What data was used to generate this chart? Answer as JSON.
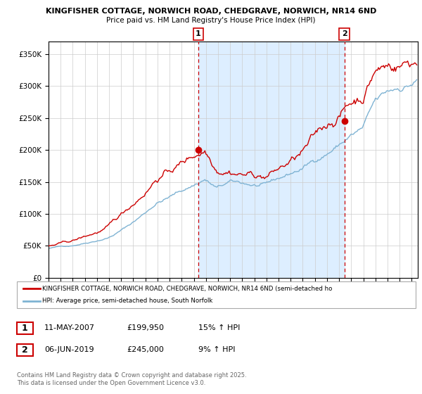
{
  "title_line1": "KINGFISHER COTTAGE, NORWICH ROAD, CHEDGRAVE, NORWICH, NR14 6ND",
  "title_line2": "Price paid vs. HM Land Registry's House Price Index (HPI)",
  "legend_line1": "KINGFISHER COTTAGE, NORWICH ROAD, CHEDGRAVE, NORWICH, NR14 6ND (semi-detached ho",
  "legend_line2": "HPI: Average price, semi-detached house, South Norfolk",
  "annotation1_date": "11-MAY-2007",
  "annotation1_price": "£199,950",
  "annotation1_hpi": "15% ↑ HPI",
  "annotation2_date": "06-JUN-2019",
  "annotation2_price": "£245,000",
  "annotation2_hpi": "9% ↑ HPI",
  "copyright_text": "Contains HM Land Registry data © Crown copyright and database right 2025.\nThis data is licensed under the Open Government Licence v3.0.",
  "red_color": "#cc0000",
  "blue_color": "#7fb3d3",
  "shade_color": "#ddeeff",
  "grid_color": "#cccccc",
  "bg_color": "#ffffff",
  "dashed_line_color": "#cc0000",
  "ylim_min": 0,
  "ylim_max": 370000,
  "yticks": [
    0,
    50000,
    100000,
    150000,
    200000,
    250000,
    300000,
    350000
  ],
  "year_start": 1995,
  "year_end": 2025,
  "marker1_year": 2007.36,
  "marker1_value": 199950,
  "marker2_year": 2019.43,
  "marker2_value": 245000
}
